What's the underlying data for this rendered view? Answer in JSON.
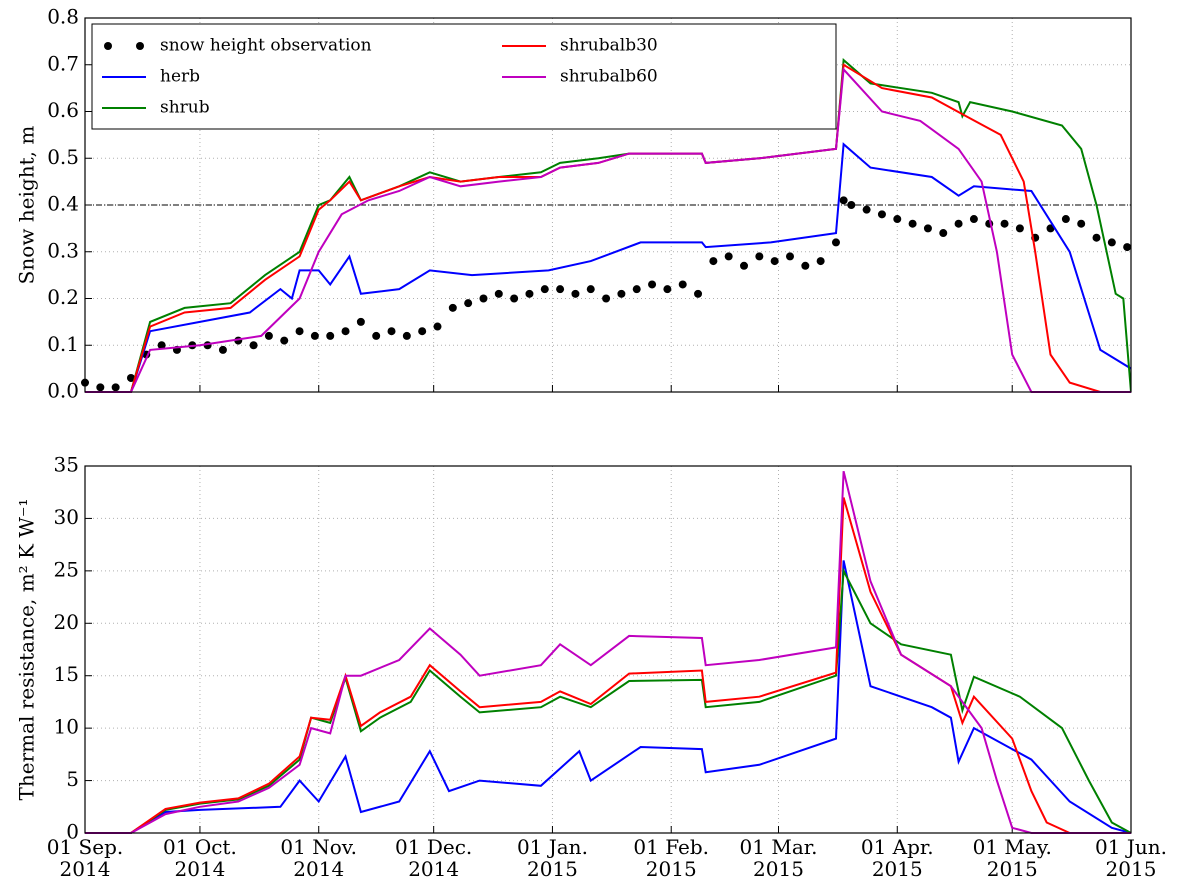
{
  "chart_data": [
    {
      "type": "line",
      "ylabel": "Snow height, m",
      "xlim": [
        "2014-09-01",
        "2015-06-01"
      ],
      "ylim": [
        0,
        0.8
      ],
      "yticks": [
        {
          "value": 0,
          "label": "0.0"
        },
        0.1,
        0.2,
        0.3,
        0.4,
        0.5,
        0.6,
        0.7,
        0.8
      ],
      "grid": true,
      "legend": "upper left",
      "hline": 0.4,
      "series": [
        {
          "name": "snow height observation",
          "kind": "scatter",
          "color": "#000000",
          "x": [
            "2014-09-01",
            "2014-09-05",
            "2014-09-09",
            "2014-09-13",
            "2014-09-17",
            "2014-09-21",
            "2014-09-25",
            "2014-09-29",
            "2014-10-03",
            "2014-10-07",
            "2014-10-11",
            "2014-10-15",
            "2014-10-19",
            "2014-10-23",
            "2014-10-27",
            "2014-10-31",
            "2014-11-04",
            "2014-11-08",
            "2014-11-12",
            "2014-11-16",
            "2014-11-20",
            "2014-11-24",
            "2014-11-28",
            "2014-12-02",
            "2014-12-06",
            "2014-12-10",
            "2014-12-14",
            "2014-12-18",
            "2014-12-22",
            "2014-12-26",
            "2014-12-30",
            "2015-01-03",
            "2015-01-07",
            "2015-01-11",
            "2015-01-15",
            "2015-01-19",
            "2015-01-23",
            "2015-01-27",
            "2015-01-31",
            "2015-02-04",
            "2015-02-08",
            "2015-02-12",
            "2015-02-16",
            "2015-02-20",
            "2015-02-24",
            "2015-02-28",
            "2015-03-04",
            "2015-03-08",
            "2015-03-12",
            "2015-03-16",
            "2015-03-18",
            "2015-03-20",
            "2015-03-24",
            "2015-03-28",
            "2015-04-01",
            "2015-04-05",
            "2015-04-09",
            "2015-04-13",
            "2015-04-17",
            "2015-04-21",
            "2015-04-25",
            "2015-04-29",
            "2015-05-03",
            "2015-05-07",
            "2015-05-11",
            "2015-05-15",
            "2015-05-19",
            "2015-05-23",
            "2015-05-27",
            "2015-05-31"
          ],
          "values": [
            0.02,
            0.01,
            0.01,
            0.03,
            0.08,
            0.1,
            0.09,
            0.1,
            0.1,
            0.09,
            0.11,
            0.1,
            0.12,
            0.11,
            0.13,
            0.12,
            0.12,
            0.13,
            0.15,
            0.12,
            0.13,
            0.12,
            0.13,
            0.14,
            0.18,
            0.19,
            0.2,
            0.21,
            0.2,
            0.21,
            0.22,
            0.22,
            0.21,
            0.22,
            0.2,
            0.21,
            0.22,
            0.23,
            0.22,
            0.23,
            0.21,
            0.28,
            0.29,
            0.27,
            0.29,
            0.28,
            0.29,
            0.27,
            0.28,
            0.32,
            0.41,
            0.4,
            0.39,
            0.38,
            0.37,
            0.36,
            0.35,
            0.34,
            0.36,
            0.37,
            0.36,
            0.36,
            0.35,
            0.33,
            0.35,
            0.37,
            0.36,
            0.33,
            0.32,
            0.31
          ]
        },
        {
          "name": "herb",
          "color": "#0000ff",
          "x": [
            "2014-09-01",
            "2014-09-13",
            "2014-09-18",
            "2014-10-01",
            "2014-10-14",
            "2014-10-22",
            "2014-10-25",
            "2014-10-27",
            "2014-11-01",
            "2014-11-04",
            "2014-11-09",
            "2014-11-12",
            "2014-11-22",
            "2014-11-30",
            "2014-12-11",
            "2014-12-31",
            "2015-01-11",
            "2015-01-24",
            "2015-02-09",
            "2015-02-10",
            "2015-02-27",
            "2015-03-16",
            "2015-03-18",
            "2015-03-25",
            "2015-04-10",
            "2015-04-17",
            "2015-04-21",
            "2015-05-06",
            "2015-05-16",
            "2015-05-24",
            "2015-06-01"
          ],
          "values": [
            0,
            0,
            0.13,
            0.15,
            0.17,
            0.22,
            0.2,
            0.26,
            0.26,
            0.23,
            0.29,
            0.21,
            0.22,
            0.26,
            0.25,
            0.26,
            0.28,
            0.32,
            0.32,
            0.31,
            0.32,
            0.34,
            0.53,
            0.48,
            0.46,
            0.42,
            0.44,
            0.43,
            0.3,
            0.09,
            0.05
          ]
        },
        {
          "name": "shrub",
          "color": "#008000",
          "x": [
            "2014-09-01",
            "2014-09-13",
            "2014-09-18",
            "2014-09-27",
            "2014-10-09",
            "2014-10-18",
            "2014-10-27",
            "2014-11-01",
            "2014-11-04",
            "2014-11-09",
            "2014-11-12",
            "2014-11-22",
            "2014-11-30",
            "2014-12-08",
            "2014-12-18",
            "2014-12-29",
            "2015-01-03",
            "2015-01-13",
            "2015-01-21",
            "2015-02-09",
            "2015-02-10",
            "2015-02-24",
            "2015-03-16",
            "2015-03-18",
            "2015-03-25",
            "2015-04-10",
            "2015-04-17",
            "2015-04-18",
            "2015-04-20",
            "2015-05-01",
            "2015-05-14",
            "2015-05-19",
            "2015-05-23",
            "2015-05-28",
            "2015-05-30",
            "2015-06-01"
          ],
          "values": [
            0,
            0,
            0.15,
            0.18,
            0.19,
            0.25,
            0.3,
            0.4,
            0.41,
            0.46,
            0.41,
            0.44,
            0.47,
            0.45,
            0.46,
            0.47,
            0.49,
            0.5,
            0.51,
            0.51,
            0.49,
            0.5,
            0.52,
            0.71,
            0.66,
            0.64,
            0.62,
            0.59,
            0.62,
            0.6,
            0.57,
            0.52,
            0.4,
            0.21,
            0.2,
            0
          ]
        },
        {
          "name": "shrubalb30",
          "color": "#ff0000",
          "x": [
            "2014-09-01",
            "2014-09-13",
            "2014-09-18",
            "2014-09-27",
            "2014-10-09",
            "2014-10-18",
            "2014-10-27",
            "2014-11-01",
            "2014-11-04",
            "2014-11-09",
            "2014-11-12",
            "2014-11-22",
            "2014-11-30",
            "2014-12-08",
            "2014-12-18",
            "2014-12-29",
            "2015-01-03",
            "2015-01-13",
            "2015-01-21",
            "2015-02-09",
            "2015-02-10",
            "2015-02-24",
            "2015-03-16",
            "2015-03-18",
            "2015-03-28",
            "2015-04-10",
            "2015-04-19",
            "2015-04-28",
            "2015-05-04",
            "2015-05-07",
            "2015-05-11",
            "2015-05-16",
            "2015-05-24",
            "2015-06-01"
          ],
          "values": [
            0,
            0,
            0.14,
            0.17,
            0.18,
            0.24,
            0.29,
            0.39,
            0.41,
            0.45,
            0.41,
            0.44,
            0.46,
            0.45,
            0.46,
            0.46,
            0.48,
            0.49,
            0.51,
            0.51,
            0.49,
            0.5,
            0.52,
            0.7,
            0.65,
            0.63,
            0.59,
            0.55,
            0.45,
            0.3,
            0.08,
            0.02,
            0,
            0
          ]
        },
        {
          "name": "shrubalb60",
          "color": "#bf00bf",
          "x": [
            "2014-09-01",
            "2014-09-13",
            "2014-09-18",
            "2014-10-01",
            "2014-10-17",
            "2014-10-27",
            "2014-11-01",
            "2014-11-07",
            "2014-11-14",
            "2014-11-22",
            "2014-11-30",
            "2014-12-08",
            "2014-12-18",
            "2014-12-29",
            "2015-01-03",
            "2015-01-13",
            "2015-01-21",
            "2015-02-09",
            "2015-02-10",
            "2015-02-24",
            "2015-03-16",
            "2015-03-18",
            "2015-03-28",
            "2015-04-07",
            "2015-04-17",
            "2015-04-23",
            "2015-04-27",
            "2015-05-01",
            "2015-05-06",
            "2015-06-01"
          ],
          "values": [
            0,
            0,
            0.09,
            0.1,
            0.12,
            0.2,
            0.3,
            0.38,
            0.41,
            0.43,
            0.46,
            0.44,
            0.45,
            0.46,
            0.48,
            0.49,
            0.51,
            0.51,
            0.49,
            0.5,
            0.52,
            0.69,
            0.6,
            0.58,
            0.52,
            0.45,
            0.3,
            0.08,
            0,
            0
          ]
        }
      ]
    },
    {
      "type": "line",
      "ylabel": "Thermal resistance, m² K W⁻¹",
      "xlim": [
        "2014-09-01",
        "2015-06-01"
      ],
      "ylim": [
        0,
        35
      ],
      "yticks": [
        0,
        5,
        10,
        15,
        20,
        25,
        30,
        35
      ],
      "grid": true,
      "xticks": [
        {
          "value": "2014-09-01",
          "label": "01 Sep.\n2014"
        },
        {
          "value": "2014-10-01",
          "label": "01 Oct.\n2014"
        },
        {
          "value": "2014-11-01",
          "label": "01 Nov.\n2014"
        },
        {
          "value": "2014-12-01",
          "label": "01 Dec.\n2014"
        },
        {
          "value": "2015-01-01",
          "label": "01 Jan.\n2015"
        },
        {
          "value": "2015-02-01",
          "label": "01 Feb.\n2015"
        },
        {
          "value": "2015-03-01",
          "label": "01 Mar.\n2015"
        },
        {
          "value": "2015-04-01",
          "label": "01 Apr.\n2015"
        },
        {
          "value": "2015-05-01",
          "label": "01 May.\n2015"
        },
        {
          "value": "2015-06-01",
          "label": "01 Jun.\n2015"
        }
      ],
      "series": [
        {
          "name": "herb",
          "color": "#0000ff",
          "x": [
            "2014-09-01",
            "2014-09-13",
            "2014-09-22",
            "2014-10-01",
            "2014-10-22",
            "2014-10-27",
            "2014-11-01",
            "2014-11-08",
            "2014-11-12",
            "2014-11-22",
            "2014-11-30",
            "2014-12-05",
            "2014-12-13",
            "2014-12-29",
            "2015-01-08",
            "2015-01-11",
            "2015-01-24",
            "2015-02-09",
            "2015-02-10",
            "2015-02-24",
            "2015-03-16",
            "2015-03-18",
            "2015-03-25",
            "2015-04-10",
            "2015-04-15",
            "2015-04-17",
            "2015-04-21",
            "2015-05-06",
            "2015-05-16",
            "2015-05-27",
            "2015-06-01"
          ],
          "values": [
            0,
            0,
            2,
            2.2,
            2.5,
            5,
            3,
            7.3,
            2,
            3,
            7.8,
            4,
            5,
            4.5,
            7.8,
            5,
            8.2,
            8,
            5.8,
            6.5,
            9,
            26,
            14,
            12,
            11,
            6.8,
            10,
            7,
            3,
            0.5,
            0
          ]
        },
        {
          "name": "shrub",
          "color": "#008000",
          "x": [
            "2014-09-01",
            "2014-09-13",
            "2014-09-22",
            "2014-10-01",
            "2014-10-11",
            "2014-10-19",
            "2014-10-27",
            "2014-10-30",
            "2014-11-04",
            "2014-11-08",
            "2014-11-12",
            "2014-11-17",
            "2014-11-25",
            "2014-11-30",
            "2014-12-08",
            "2014-12-13",
            "2014-12-29",
            "2015-01-03",
            "2015-01-11",
            "2015-01-21",
            "2015-02-09",
            "2015-02-10",
            "2015-02-24",
            "2015-03-16",
            "2015-03-18",
            "2015-03-25",
            "2015-04-02",
            "2015-04-15",
            "2015-04-18",
            "2015-04-21",
            "2015-05-03",
            "2015-05-14",
            "2015-05-21",
            "2015-05-27",
            "2015-06-01"
          ],
          "values": [
            0,
            0,
            2.2,
            2.8,
            3.2,
            4.5,
            7,
            11,
            10.5,
            14.8,
            9.7,
            11,
            12.5,
            15.5,
            13,
            11.5,
            12,
            13,
            12,
            14.5,
            14.6,
            12,
            12.5,
            15,
            25,
            20,
            18,
            17,
            11.7,
            14.9,
            13,
            10,
            5,
            1,
            0
          ]
        },
        {
          "name": "shrubalb30",
          "color": "#ff0000",
          "x": [
            "2014-09-01",
            "2014-09-13",
            "2014-09-22",
            "2014-10-01",
            "2014-10-11",
            "2014-10-19",
            "2014-10-27",
            "2014-10-30",
            "2014-11-04",
            "2014-11-08",
            "2014-11-12",
            "2014-11-17",
            "2014-11-25",
            "2014-11-30",
            "2014-12-08",
            "2014-12-13",
            "2014-12-29",
            "2015-01-03",
            "2015-01-11",
            "2015-01-21",
            "2015-02-09",
            "2015-02-10",
            "2015-02-24",
            "2015-03-16",
            "2015-03-18",
            "2015-03-25",
            "2015-04-02",
            "2015-04-15",
            "2015-04-18",
            "2015-04-21",
            "2015-05-01",
            "2015-05-06",
            "2015-05-10",
            "2015-05-16",
            "2015-06-01"
          ],
          "values": [
            0,
            0,
            2.3,
            2.9,
            3.3,
            4.7,
            7.3,
            11,
            10.8,
            15,
            10.2,
            11.5,
            13,
            16,
            13.5,
            12,
            12.5,
            13.5,
            12.3,
            15.2,
            15.5,
            12.5,
            13,
            15.3,
            32,
            23,
            17,
            14,
            10.5,
            13,
            9,
            4,
            1,
            0,
            0
          ]
        },
        {
          "name": "shrubalb60",
          "color": "#bf00bf",
          "x": [
            "2014-09-01",
            "2014-09-13",
            "2014-09-22",
            "2014-10-01",
            "2014-10-11",
            "2014-10-19",
            "2014-10-27",
            "2014-10-30",
            "2014-11-04",
            "2014-11-08",
            "2014-11-12",
            "2014-11-22",
            "2014-11-30",
            "2014-12-08",
            "2014-12-13",
            "2014-12-29",
            "2015-01-03",
            "2015-01-11",
            "2015-01-21",
            "2015-02-09",
            "2015-02-10",
            "2015-02-24",
            "2015-03-16",
            "2015-03-18",
            "2015-03-25",
            "2015-04-02",
            "2015-04-15",
            "2015-04-23",
            "2015-04-27",
            "2015-05-01",
            "2015-05-06",
            "2015-06-01"
          ],
          "values": [
            0,
            0,
            1.8,
            2.5,
            3,
            4.3,
            6.5,
            10,
            9.5,
            15,
            15,
            16.5,
            19.5,
            17,
            15,
            16,
            18,
            16,
            18.8,
            18.6,
            16,
            16.5,
            17.7,
            34.5,
            24,
            17,
            14,
            10,
            5,
            0.5,
            0,
            0
          ]
        }
      ]
    }
  ]
}
